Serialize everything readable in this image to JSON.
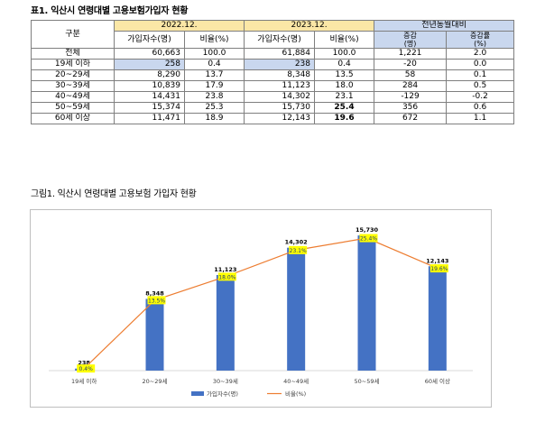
{
  "table_title": "표1. 익산시 연령대별 고용보험가입자 현황",
  "table": {
    "col_category": "구분",
    "year1": "2022.12.",
    "year2": "2023.12.",
    "compare": "전년동월대비",
    "sub_count": "가입자수(명)",
    "sub_ratio": "비율(%)",
    "sub_change_line1": "증감",
    "sub_change_line2": "(명)",
    "sub_rate_line1": "증감률",
    "sub_rate_line2": "(%)",
    "rows": [
      {
        "label": "전체",
        "c1": "60,663",
        "r1": "100.0",
        "c2": "61,884",
        "r2": "100.0",
        "chg": "1,221",
        "rate": "2.0"
      },
      {
        "label": "19세 이하",
        "c1": "258",
        "r1": "0.4",
        "c2": "238",
        "r2": "0.4",
        "chg": "-20",
        "rate": "0.0"
      },
      {
        "label": "20~29세",
        "c1": "8,290",
        "r1": "13.7",
        "c2": "8,348",
        "r2": "13.5",
        "chg": "58",
        "rate": "0.1"
      },
      {
        "label": "30~39세",
        "c1": "10,839",
        "r1": "17.9",
        "c2": "11,123",
        "r2": "18.0",
        "chg": "284",
        "rate": "0.5"
      },
      {
        "label": "40~49세",
        "c1": "14,431",
        "r1": "23.8",
        "c2": "14,302",
        "r2": "23.1",
        "chg": "-129",
        "rate": "-0.2"
      },
      {
        "label": "50~59세",
        "c1": "15,374",
        "r1": "25.3",
        "c2": "15,730",
        "r2": "25.4",
        "chg": "356",
        "rate": "0.6"
      },
      {
        "label": "60세 이상",
        "c1": "11,471",
        "r1": "18.9",
        "c2": "12,143",
        "r2": "19.6",
        "chg": "672",
        "rate": "1.1"
      }
    ]
  },
  "chart_title": "그림1. 익산시 연령대별 고용보험 가입자 현황",
  "chart_data": {
    "type": "bar",
    "categories": [
      "19세 이하",
      "20~29세",
      "30~39세",
      "40~49세",
      "50~59세",
      "60세 이상"
    ],
    "series": [
      {
        "name": "가입자수(명)",
        "type": "bar",
        "values": [
          238,
          8348,
          11123,
          14302,
          15730,
          12143
        ],
        "labels": [
          "238",
          "8,348",
          "11,123",
          "14,302",
          "15,730",
          "12,143"
        ]
      },
      {
        "name": "비율(%)",
        "type": "line",
        "values": [
          0.4,
          13.5,
          18.0,
          23.1,
          25.4,
          19.6
        ],
        "labels": [
          "0.4%",
          "13.5%",
          "18.0%",
          "23.1%",
          "25.4%",
          "19.6%"
        ]
      }
    ],
    "colors": {
      "bar": "#4472c4",
      "line": "#ed7d31",
      "label_bg": "#ffff00"
    },
    "ylim_count": [
      0,
      17000
    ],
    "ylim_ratio": [
      0,
      28
    ],
    "legend_position": "bottom"
  }
}
